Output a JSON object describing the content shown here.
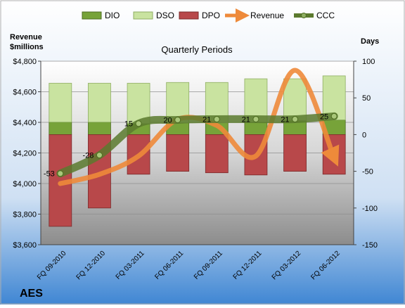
{
  "chart_data": {
    "type": "bar",
    "title": "Quarterly Periods",
    "company": "AES",
    "left_axis_label": "Revenue\n$millions",
    "right_axis_label": "Days",
    "categories": [
      "FQ 09-2010",
      "FQ 12-2010",
      "FQ 03-2011",
      "FQ 06-2011",
      "FQ 09-2011",
      "FQ 12-2011",
      "FQ 03-2012",
      "FQ 06-2012"
    ],
    "left_axis": {
      "min": 3600,
      "max": 4800,
      "ticks": [
        "$3,600",
        "$3,800",
        "$4,000",
        "$4,200",
        "$4,400",
        "$4,600",
        "$4,800"
      ]
    },
    "right_axis": {
      "min": -150,
      "max": 100,
      "ticks": [
        "-150",
        "-100",
        "-50",
        "0",
        "50",
        "100"
      ]
    },
    "series": [
      {
        "name": "DIO",
        "kind": "stacked-bar",
        "axis": "days",
        "color": "#77a339",
        "values": [
          17,
          17,
          15,
          16,
          16,
          17,
          19,
          20
        ]
      },
      {
        "name": "DSO",
        "kind": "stacked-bar",
        "axis": "days",
        "color": "#c9e3a0",
        "values": [
          53,
          53,
          55,
          55,
          55,
          59,
          57,
          60
        ]
      },
      {
        "name": "DPO",
        "kind": "negative-bar",
        "axis": "days",
        "color": "#b8484a",
        "values": [
          -125,
          -100,
          -54,
          -50,
          -52,
          -55,
          -50,
          -54
        ]
      },
      {
        "name": "Revenue",
        "kind": "line",
        "axis": "revenue",
        "color": "#ee8a3a",
        "values": [
          4000,
          4060,
          4180,
          4420,
          4380,
          4180,
          4740,
          4170
        ]
      },
      {
        "name": "CCC",
        "kind": "line",
        "axis": "days",
        "color": "#5b7a2e",
        "values": [
          -53,
          -28,
          15,
          20,
          21,
          21,
          21,
          25
        ],
        "labels": [
          "-53",
          "-28",
          "15",
          "20",
          "21",
          "21",
          "21",
          "25"
        ]
      }
    ],
    "legend_position": "top",
    "grid": true
  }
}
